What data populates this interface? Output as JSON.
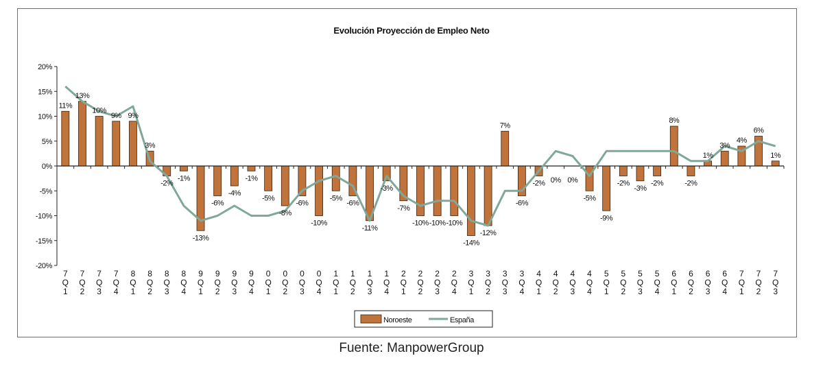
{
  "chart_data": {
    "type": "bar",
    "title": "Evolución Proyección  de Empleo Neto",
    "xlabel": "",
    "ylabel": "",
    "ylim": [
      -20,
      20
    ],
    "yticks": [
      "-20%",
      "-15%",
      "-10%",
      "-5%",
      "0%",
      "5%",
      "10%",
      "15%",
      "20%"
    ],
    "grid": false,
    "legend_position": "bottom",
    "categories": [
      "07 Q1",
      "07 Q2",
      "07 Q3",
      "07 Q4",
      "08 Q1",
      "08 Q2",
      "08 Q3",
      "08 Q4",
      "09 Q1",
      "09 Q2",
      "09 Q3",
      "09 Q4",
      "10 Q1",
      "10 Q2",
      "10 Q3",
      "10 Q4",
      "11 Q1",
      "11 Q2",
      "11 Q3",
      "11 Q4",
      "12 Q1",
      "12 Q2",
      "12 Q3",
      "12 Q4",
      "13 Q1",
      "13 Q2",
      "13 Q3",
      "13 Q4",
      "14 Q1",
      "14 Q2",
      "14 Q3",
      "14 Q4",
      "15 Q1",
      "15 Q2",
      "15 Q3",
      "15 Q4",
      "16 Q1",
      "16 Q2",
      "16 Q3",
      "16 Q4",
      "17 Q1",
      "17 Q2",
      "17 Q3"
    ],
    "tick_labels": [
      [
        "7",
        "Q",
        "1"
      ],
      [
        "7",
        "Q",
        "2"
      ],
      [
        "7",
        "Q",
        "3"
      ],
      [
        "7",
        "Q",
        "4"
      ],
      [
        "8",
        "Q",
        "1"
      ],
      [
        "8",
        "Q",
        "2"
      ],
      [
        "8",
        "Q",
        "3"
      ],
      [
        "8",
        "Q",
        "4"
      ],
      [
        "9",
        "Q",
        "1"
      ],
      [
        "9",
        "Q",
        "2"
      ],
      [
        "9",
        "Q",
        "3"
      ],
      [
        "9",
        "Q",
        "4"
      ],
      [
        "0",
        "Q",
        "1"
      ],
      [
        "0",
        "Q",
        "2"
      ],
      [
        "0",
        "Q",
        "3"
      ],
      [
        "0",
        "Q",
        "4"
      ],
      [
        "1",
        "Q",
        "1"
      ],
      [
        "1",
        "Q",
        "2"
      ],
      [
        "1",
        "Q",
        "3"
      ],
      [
        "1",
        "Q",
        "4"
      ],
      [
        "2",
        "Q",
        "1"
      ],
      [
        "2",
        "Q",
        "2"
      ],
      [
        "2",
        "Q",
        "3"
      ],
      [
        "2",
        "Q",
        "4"
      ],
      [
        "3",
        "Q",
        "1"
      ],
      [
        "3",
        "Q",
        "2"
      ],
      [
        "3",
        "Q",
        "3"
      ],
      [
        "3",
        "Q",
        "4"
      ],
      [
        "4",
        "Q",
        "1"
      ],
      [
        "4",
        "Q",
        "2"
      ],
      [
        "4",
        "Q",
        "3"
      ],
      [
        "4",
        "Q",
        "4"
      ],
      [
        "5",
        "Q",
        "1"
      ],
      [
        "5",
        "Q",
        "2"
      ],
      [
        "5",
        "Q",
        "3"
      ],
      [
        "5",
        "Q",
        "4"
      ],
      [
        "6",
        "Q",
        "1"
      ],
      [
        "6",
        "Q",
        "2"
      ],
      [
        "6",
        "Q",
        "3"
      ],
      [
        "6",
        "Q",
        "4"
      ],
      [
        "7",
        "Q",
        "1"
      ],
      [
        "7",
        "Q",
        "2"
      ],
      [
        "7",
        "Q",
        "3"
      ]
    ],
    "series": [
      {
        "name": "Noroeste",
        "type": "bar",
        "color": "#c0733a",
        "values": [
          11,
          13,
          10,
          9,
          9,
          3,
          -2,
          -1,
          -13,
          -6,
          -4,
          -1,
          -5,
          -8,
          -6,
          -10,
          -5,
          -6,
          -11,
          -3,
          -7,
          -10,
          -10,
          -10,
          -14,
          -12,
          7,
          -6,
          -2,
          0,
          0,
          -5,
          -9,
          -2,
          -3,
          -2,
          8,
          -2,
          1,
          3,
          4,
          6,
          1
        ],
        "labels": [
          "11%",
          "13%",
          "10%",
          "9%",
          "9%",
          "3%",
          "-2%",
          "-1%",
          "-13%",
          "-6%",
          "-4%",
          "-1%",
          "-5%",
          "-8%",
          "-6%",
          "-10%",
          "-5%",
          "-6%",
          "-11%",
          "-3%",
          "-7%",
          "-10%",
          "-10%",
          "-10%",
          "-14%",
          "-12%",
          "7%",
          "-6%",
          "-2%",
          "0%",
          "0%",
          "-5%",
          "-9%",
          "-2%",
          "-3%",
          "-2%",
          "8%",
          "-2%",
          "1%",
          "3%",
          "4%",
          "6%",
          "1%"
        ]
      },
      {
        "name": "España",
        "type": "line",
        "color": "#7fa898",
        "values": [
          16,
          13,
          11,
          10,
          12,
          1,
          -2,
          -8,
          -11,
          -10,
          -8,
          -10,
          -10,
          -9,
          -5,
          -3,
          -2,
          -4,
          -11,
          -2,
          -6,
          -8,
          -7,
          -7,
          -11,
          -12,
          -5,
          -5,
          -1,
          3,
          2,
          -2,
          3,
          3,
          3,
          3,
          3,
          1,
          1,
          4,
          3,
          5,
          4
        ]
      }
    ]
  },
  "footer": {
    "source": "Fuente: ManpowerGroup"
  }
}
